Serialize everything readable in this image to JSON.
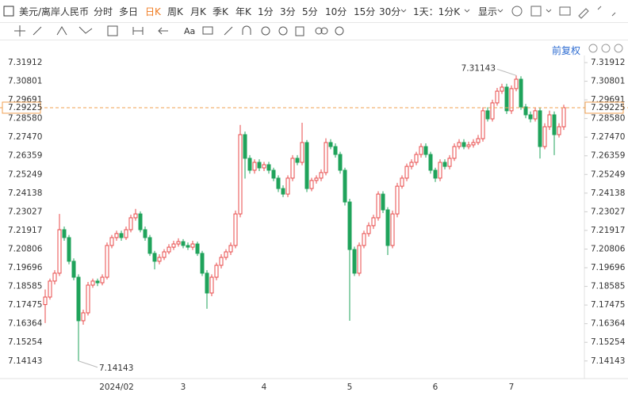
{
  "toolbar": {
    "symbol": "美元/离岸人民币",
    "periods": [
      "分时",
      "多日",
      "日K",
      "周K",
      "月K",
      "季K",
      "年K",
      "1分",
      "3分",
      "5分",
      "10分",
      "15分",
      "30分"
    ],
    "selected": "日K",
    "range": "1天：1分K",
    "display": "显示",
    "adjust": "前复权"
  },
  "chart_data": {
    "type": "candlestick",
    "up_color": "#e84a4a",
    "down_color": "#1fa35b",
    "current_color": "#f0a050",
    "grid": false,
    "categories": [
      null,
      null,
      null,
      null,
      null,
      null,
      null,
      null,
      null,
      null,
      null,
      null,
      null,
      null,
      null,
      "2024/02",
      null,
      null,
      null,
      null,
      null,
      null,
      null,
      null,
      null,
      null,
      null,
      null,
      null,
      "3",
      null,
      null,
      null,
      null,
      null,
      null,
      null,
      null,
      null,
      null,
      null,
      null,
      null,
      null,
      null,
      null,
      "4",
      null,
      null,
      null,
      null,
      null,
      null,
      null,
      null,
      null,
      null,
      null,
      null,
      null,
      null,
      null,
      null,
      null,
      "5",
      null,
      null,
      null,
      null,
      null,
      null,
      null,
      null,
      null,
      null,
      null,
      null,
      null,
      null,
      null,
      null,
      null,
      "6",
      null,
      null,
      null,
      null,
      null,
      null,
      null,
      null,
      null,
      null,
      null,
      null,
      null,
      null,
      null,
      "7",
      null,
      null,
      null,
      null,
      null,
      null,
      null,
      null,
      null,
      null,
      null
    ],
    "open": [
      7.175,
      7.1795,
      7.189,
      7.1937,
      7.2196,
      7.2149,
      7.2008,
      7.1913,
      7.1654,
      7.1701,
      7.1866,
      7.189,
      7.188,
      7.1913,
      7.2102,
      7.2149,
      7.2173,
      7.2149,
      7.2196,
      7.2267,
      7.229,
      7.2196,
      7.2149,
      7.2055,
      7.2008,
      7.2031,
      7.2064,
      7.2092,
      7.2111,
      7.2125,
      7.2102,
      7.2092,
      7.2111,
      7.2055,
      7.1937,
      7.1819,
      7.1913,
      7.1984,
      7.2031,
      7.2064,
      7.2102,
      7.229,
      7.2762,
      7.2621,
      7.255,
      7.2597,
      7.2564,
      7.2583,
      7.255,
      7.2503,
      7.2441,
      7.2408,
      7.2503,
      7.2621,
      7.2597,
      7.2715,
      7.2441,
      7.2489,
      7.2503,
      7.2536,
      7.2715,
      7.2691,
      7.2644,
      7.255,
      7.2361,
      7.2078,
      7.1937,
      7.2102,
      7.2173,
      7.222,
      7.2267,
      7.2408,
      7.2314,
      7.2102,
      7.229,
      7.2455,
      7.2503,
      7.2573,
      7.2597,
      7.2644,
      7.2691,
      7.2644,
      7.255,
      7.2503,
      7.2597,
      7.2573,
      7.2621,
      7.2691,
      7.2715,
      7.2691,
      7.2701,
      7.2715,
      7.2738,
      7.2904,
      7.2856,
      7.2951,
      7.3021,
      7.3045,
      7.2904,
      7.3036,
      7.3092,
      7.2927,
      7.288,
      7.2856,
      7.2904,
      7.2691,
      7.2809,
      7.288,
      7.2762,
      7.2809
    ],
    "high": [
      7.184,
      7.1905,
      7.1955,
      7.229,
      7.2215,
      7.2165,
      7.2025,
      7.193,
      7.172,
      7.1885,
      7.1905,
      7.1905,
      7.193,
      7.212,
      7.2165,
      7.219,
      7.219,
      7.2215,
      7.2285,
      7.232,
      7.2305,
      7.2215,
      7.2165,
      7.207,
      7.205,
      7.208,
      7.211,
      7.213,
      7.2145,
      7.214,
      7.212,
      7.213,
      7.2125,
      7.207,
      7.1955,
      7.193,
      7.2,
      7.205,
      7.208,
      7.212,
      7.231,
      7.282,
      7.278,
      7.264,
      7.2615,
      7.2615,
      7.26,
      7.26,
      7.2565,
      7.252,
      7.246,
      7.252,
      7.264,
      7.264,
      7.2833,
      7.273,
      7.2505,
      7.252,
      7.2555,
      7.274,
      7.2735,
      7.271,
      7.266,
      7.2565,
      7.238,
      7.2095,
      7.212,
      7.219,
      7.224,
      7.2285,
      7.2425,
      7.2425,
      7.233,
      7.231,
      7.2475,
      7.252,
      7.259,
      7.2615,
      7.266,
      7.271,
      7.271,
      7.266,
      7.2565,
      7.2615,
      7.2615,
      7.264,
      7.271,
      7.2735,
      7.2735,
      7.272,
      7.2735,
      7.276,
      7.2925,
      7.2925,
      7.297,
      7.304,
      7.3065,
      7.3065,
      7.3055,
      7.31143,
      7.311,
      7.2945,
      7.29,
      7.2925,
      7.292,
      7.283,
      7.2905,
      7.29,
      7.283,
      7.294
    ],
    "low": [
      7.164,
      7.178,
      7.187,
      7.192,
      7.213,
      7.199,
      7.1895,
      7.14143,
      7.163,
      7.1685,
      7.185,
      7.186,
      7.1865,
      7.19,
      7.2085,
      7.213,
      7.213,
      7.2135,
      7.218,
      7.225,
      7.218,
      7.213,
      7.204,
      7.196,
      7.199,
      7.2015,
      7.205,
      7.2075,
      7.2095,
      7.2085,
      7.2075,
      7.2075,
      7.204,
      7.192,
      7.1725,
      7.18,
      7.1895,
      7.1965,
      7.2015,
      7.2045,
      7.2085,
      7.227,
      7.25,
      7.253,
      7.253,
      7.2545,
      7.2545,
      7.253,
      7.2485,
      7.242,
      7.239,
      7.239,
      7.2485,
      7.258,
      7.258,
      7.242,
      7.2425,
      7.247,
      7.2485,
      7.252,
      7.2675,
      7.2625,
      7.253,
      7.234,
      7.1654,
      7.192,
      7.192,
      7.2085,
      7.2155,
      7.22,
      7.225,
      7.2295,
      7.2045,
      7.2085,
      7.227,
      7.244,
      7.2485,
      7.2555,
      7.258,
      7.2625,
      7.2625,
      7.253,
      7.248,
      7.2485,
      7.2555,
      7.2555,
      7.2605,
      7.2675,
      7.2675,
      7.2675,
      7.2685,
      7.27,
      7.272,
      7.284,
      7.284,
      7.2935,
      7.3005,
      7.2885,
      7.2885,
      7.302,
      7.291,
      7.286,
      7.2835,
      7.284,
      7.262,
      7.2675,
      7.279,
      7.264,
      7.2745,
      7.279
    ],
    "close": [
      7.1795,
      7.189,
      7.1937,
      7.2196,
      7.2149,
      7.2008,
      7.1913,
      7.1654,
      7.1701,
      7.1866,
      7.189,
      7.188,
      7.1913,
      7.2102,
      7.2149,
      7.2173,
      7.2149,
      7.2196,
      7.2267,
      7.229,
      7.2196,
      7.2149,
      7.2055,
      7.2008,
      7.2031,
      7.2064,
      7.2092,
      7.2111,
      7.2125,
      7.2102,
      7.2092,
      7.2111,
      7.2055,
      7.1937,
      7.1819,
      7.1913,
      7.1984,
      7.2031,
      7.2064,
      7.2102,
      7.229,
      7.2762,
      7.2621,
      7.255,
      7.2597,
      7.2564,
      7.2583,
      7.255,
      7.2503,
      7.2441,
      7.2408,
      7.2503,
      7.2621,
      7.2597,
      7.2715,
      7.2441,
      7.2489,
      7.2503,
      7.2536,
      7.2715,
      7.2691,
      7.2644,
      7.255,
      7.2361,
      7.2078,
      7.1937,
      7.2102,
      7.2173,
      7.222,
      7.2267,
      7.2408,
      7.2314,
      7.2102,
      7.229,
      7.2455,
      7.2503,
      7.2573,
      7.2597,
      7.2644,
      7.2691,
      7.2644,
      7.255,
      7.2503,
      7.2597,
      7.2573,
      7.2621,
      7.2691,
      7.2715,
      7.2691,
      7.2701,
      7.2715,
      7.2738,
      7.2904,
      7.2856,
      7.2951,
      7.3021,
      7.3045,
      7.2904,
      7.3036,
      7.3092,
      7.2927,
      7.288,
      7.2856,
      7.2904,
      7.2691,
      7.2809,
      7.288,
      7.2762,
      7.2809,
      7.29225
    ],
    "ylim": [
      7.13095,
      7.32336
    ],
    "yticks": [
      7.31912,
      7.30801,
      7.29691,
      {
        "value": 7.2858,
        "label": "7.28580"
      },
      {
        "value": 7.2747,
        "label": "7.27470"
      },
      7.26359,
      7.25249,
      7.24138,
      7.23027,
      7.21917,
      7.20806,
      7.19696,
      7.18585,
      7.17475,
      7.16364,
      7.15254,
      7.14143
    ]
  }
}
